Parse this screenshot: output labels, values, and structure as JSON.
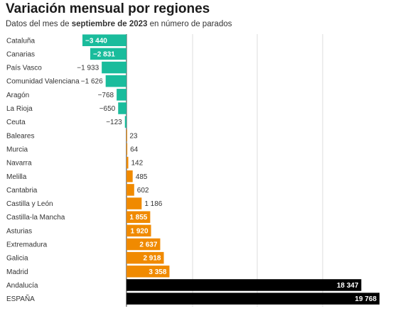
{
  "header": {
    "title": "Variación mensual por regiones",
    "subtitle_pre": "Datos del mes de ",
    "subtitle_bold": "septiembre de 2023",
    "subtitle_post": " en número de parados"
  },
  "colors": {
    "negative": "#1abc9c",
    "positive": "#f08a00",
    "total": "#000000",
    "grid": "#dddddd"
  },
  "chart_data": {
    "type": "bar",
    "orientation": "horizontal",
    "title": "Variación mensual por regiones",
    "subtitle": "Datos del mes de septiembre de 2023 en número de parados",
    "categories": [
      "Cataluña",
      "Canarias",
      "País Vasco",
      "Comunidad Valenciana",
      "Aragón",
      "La Rioja",
      "Ceuta",
      "Baleares",
      "Murcia",
      "Navarra",
      "Melilla",
      "Cantabria",
      "Castilla y León",
      "Castilla-la Mancha",
      "Asturias",
      "Extremadura",
      "Galicia",
      "Madrid",
      "Andalucía",
      "ESPAÑA"
    ],
    "values": [
      -3440,
      -2831,
      -1933,
      -1626,
      -768,
      -650,
      -123,
      23,
      64,
      142,
      485,
      602,
      1186,
      1855,
      1920,
      2637,
      2918,
      3358,
      18347,
      19768
    ],
    "value_labels": [
      "−3 440",
      "−2 831",
      "−1 933",
      "−1 626",
      "−768",
      "−650",
      "−123",
      "23",
      "64",
      "142",
      "485",
      "602",
      "1 186",
      "1 855",
      "1 920",
      "2 637",
      "2 918",
      "3 358",
      "18 347",
      "19 768"
    ],
    "labels_inside": [
      true,
      true,
      false,
      false,
      false,
      false,
      false,
      false,
      false,
      false,
      false,
      false,
      false,
      true,
      true,
      true,
      true,
      true,
      true,
      true
    ],
    "bar_colors": [
      "negative",
      "negative",
      "negative",
      "negative",
      "negative",
      "negative",
      "negative",
      "positive",
      "positive",
      "positive",
      "positive",
      "positive",
      "positive",
      "positive",
      "positive",
      "positive",
      "positive",
      "positive",
      "total",
      "total"
    ],
    "xlim": [
      -3440,
      19768
    ],
    "grid": true
  }
}
